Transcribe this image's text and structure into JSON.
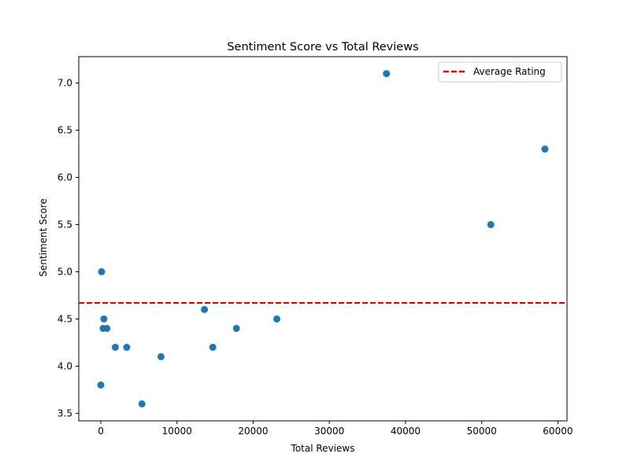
{
  "chart_data": {
    "type": "scatter",
    "title": "Sentiment Score vs Total Reviews",
    "xlabel": "Total Reviews",
    "ylabel": "Sentiment Score",
    "xlim": [
      -2900,
      61200
    ],
    "ylim": [
      3.42,
      7.28
    ],
    "xticks": [
      0,
      10000,
      20000,
      30000,
      40000,
      50000,
      60000
    ],
    "yticks": [
      3.5,
      4.0,
      4.5,
      5.0,
      5.5,
      6.0,
      6.5,
      7.0
    ],
    "ytick_labels": [
      "3.5",
      "4.0",
      "4.5",
      "5.0",
      "5.5",
      "6.0",
      "6.5",
      "7.0"
    ],
    "grid": false,
    "legend": {
      "placement": "top-right",
      "entries": [
        "Average Rating"
      ]
    },
    "points": [
      {
        "x": 0,
        "y": 3.8
      },
      {
        "x": 100,
        "y": 5.0
      },
      {
        "x": 300,
        "y": 4.4
      },
      {
        "x": 400,
        "y": 4.5
      },
      {
        "x": 800,
        "y": 4.4
      },
      {
        "x": 1900,
        "y": 4.2
      },
      {
        "x": 3400,
        "y": 4.2
      },
      {
        "x": 5400,
        "y": 3.6
      },
      {
        "x": 7900,
        "y": 4.1
      },
      {
        "x": 13600,
        "y": 4.6
      },
      {
        "x": 14700,
        "y": 4.2
      },
      {
        "x": 17800,
        "y": 4.4
      },
      {
        "x": 23100,
        "y": 4.5
      },
      {
        "x": 37500,
        "y": 7.1
      },
      {
        "x": 51200,
        "y": 5.5
      },
      {
        "x": 58300,
        "y": 6.3
      }
    ],
    "reference_line": {
      "name": "Average Rating",
      "y": 4.67,
      "style": "dashed"
    },
    "colors": {
      "points": "#1f77b4",
      "reference_line": "#e00000",
      "axes": "#000000"
    }
  }
}
